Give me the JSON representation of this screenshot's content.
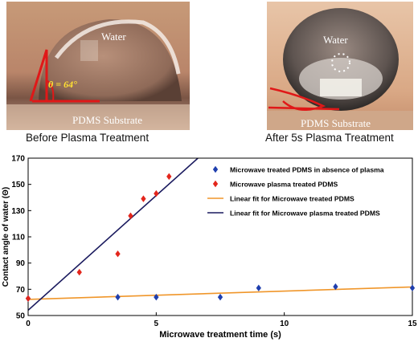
{
  "photos": {
    "before": {
      "water_label": "Water",
      "angle_label": "θ = 64°",
      "substrate_label": "PDMS Substrate",
      "caption": "Before Plasma Treatment"
    },
    "after": {
      "water_label": "Water",
      "substrate_label": "PDMS Substrate",
      "caption": "After 5s Plasma Treatment"
    }
  },
  "colors": {
    "blue_marker": "#1f3fae",
    "red_marker": "#e3261c",
    "orange_fit": "#f0962a",
    "navy_fit": "#1a1a5e"
  },
  "chart_data": {
    "type": "scatter",
    "xlabel": "Microwave treatment time (s)",
    "ylabel": "Contact angle of water (Θ)",
    "xlim": [
      0,
      15
    ],
    "ylim": [
      50,
      170
    ],
    "xticks": [
      0,
      5,
      10,
      15
    ],
    "yticks": [
      50,
      70,
      90,
      110,
      130,
      150,
      170
    ],
    "legend_position": "top-right",
    "series": [
      {
        "name": "Microwave treated PDMS in absence of plasma",
        "marker": "diamond",
        "color": "#1f3fae",
        "points": [
          [
            0,
            63
          ],
          [
            3.5,
            64
          ],
          [
            5,
            64
          ],
          [
            7.5,
            64
          ],
          [
            9,
            71
          ],
          [
            12,
            72
          ],
          [
            15,
            71
          ]
        ]
      },
      {
        "name": "Microwave plasma treated PDMS",
        "marker": "diamond",
        "color": "#e3261c",
        "points": [
          [
            0,
            63
          ],
          [
            2,
            83
          ],
          [
            3.5,
            97
          ],
          [
            4,
            126
          ],
          [
            4.5,
            139
          ],
          [
            5,
            143
          ],
          [
            5.5,
            156
          ]
        ]
      }
    ],
    "fits": [
      {
        "name": "Linear fit for Microwave treated PDMS",
        "color": "#f0962a",
        "slope": 0.63,
        "intercept": 62.3
      },
      {
        "name": "Linear fit for Microwave plasma treated PDMS",
        "color": "#1a1a5e",
        "slope": 17.5,
        "intercept": 54
      }
    ]
  }
}
